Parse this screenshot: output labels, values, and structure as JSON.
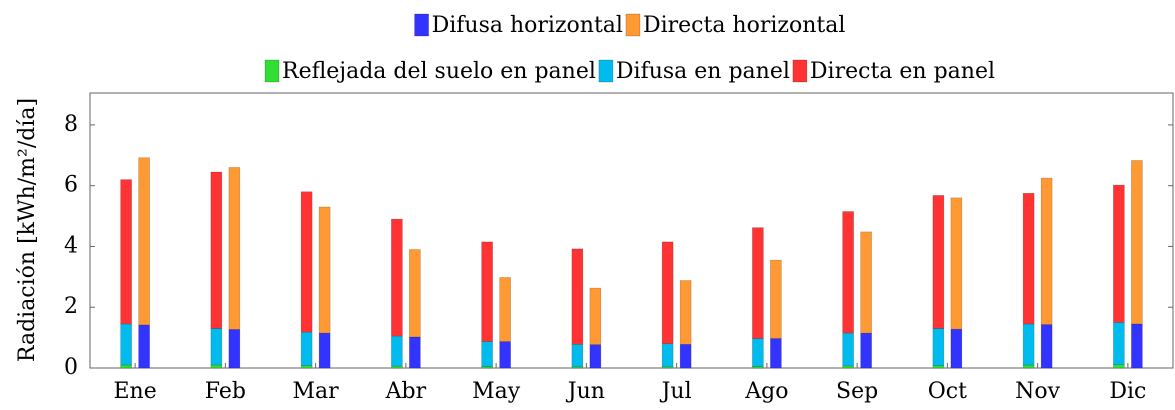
{
  "chart_data": {
    "type": "stacked-bar",
    "ylabel": "Radiación [kWh/m²/día]",
    "categories": [
      "Ene",
      "Feb",
      "Mar",
      "Abr",
      "May",
      "Jun",
      "Jul",
      "Ago",
      "Sep",
      "Oct",
      "Nov",
      "Dic"
    ],
    "series": [
      {
        "name": "Reflejada del suelo en panel",
        "color": "#33dd33",
        "stack": 0,
        "values": [
          0.1,
          0.1,
          0.08,
          0.06,
          0.05,
          0.04,
          0.04,
          0.05,
          0.07,
          0.08,
          0.1,
          0.11
        ]
      },
      {
        "name": "Difusa en panel",
        "color": "#00bbee",
        "stack": 0,
        "values": [
          1.35,
          1.2,
          1.1,
          0.99,
          0.82,
          0.74,
          0.76,
          0.92,
          1.08,
          1.22,
          1.35,
          1.39
        ]
      },
      {
        "name": "Directa en panel",
        "color": "#ff3333",
        "stack": 0,
        "values": [
          4.75,
          5.15,
          4.62,
          3.85,
          3.28,
          3.14,
          3.35,
          3.65,
          4.0,
          4.38,
          4.3,
          4.52
        ]
      },
      {
        "name": "Difusa horizontal",
        "color": "#3333ff",
        "stack": 1,
        "values": [
          1.42,
          1.27,
          1.15,
          1.02,
          0.87,
          0.77,
          0.78,
          0.97,
          1.15,
          1.28,
          1.43,
          1.45
        ]
      },
      {
        "name": "Directa horizontal",
        "color": "#ff9933",
        "stack": 1,
        "values": [
          5.5,
          5.33,
          4.15,
          2.88,
          2.11,
          1.86,
          2.1,
          2.58,
          3.33,
          4.32,
          4.82,
          5.38
        ]
      }
    ],
    "ylim": [
      0,
      9.05
    ],
    "yticks": [
      0,
      2,
      4,
      6,
      8
    ]
  }
}
